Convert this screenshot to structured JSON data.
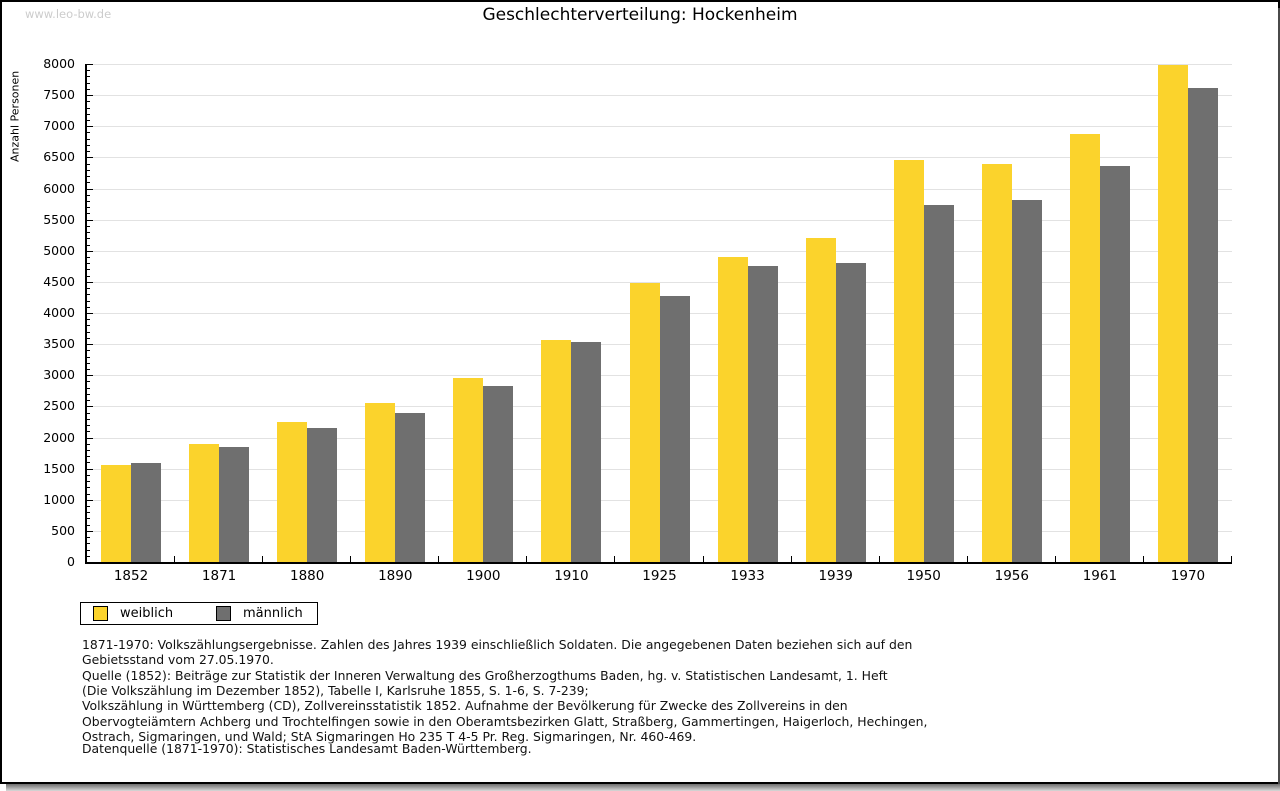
{
  "watermark": "www.leo-bw.de",
  "chart_data": {
    "type": "bar",
    "title": "Geschlechterverteilung: Hockenheim",
    "ylabel": "Anzahl Personen",
    "categories": [
      "1852",
      "1871",
      "1880",
      "1890",
      "1900",
      "1910",
      "1925",
      "1933",
      "1939",
      "1950",
      "1956",
      "1961",
      "1970"
    ],
    "series": [
      {
        "name": "weiblich",
        "color": "#fbd32c",
        "values": [
          1560,
          1900,
          2250,
          2560,
          2960,
          3560,
          4490,
          4900,
          5200,
          6460,
          6400,
          6880,
          7980
        ]
      },
      {
        "name": "männlich",
        "color": "#6f6f6f",
        "values": [
          1590,
          1850,
          2150,
          2400,
          2820,
          3540,
          4280,
          4760,
          4800,
          5740,
          5820,
          6360,
          7610
        ]
      }
    ],
    "ylim": [
      0,
      8000
    ],
    "ytick_step": 500,
    "minor_tick_step": 100,
    "grid": true,
    "gridline_color": "#e2e2e2",
    "legend_position": "bottom-left"
  },
  "notes": {
    "lines": [
      "1871-1970: Volkszählungsergebnisse. Zahlen des Jahres 1939 einschließlich Soldaten. Die angegebenen Daten beziehen sich auf den",
      "Gebietsstand vom 27.05.1970.",
      "Quelle (1852): Beiträge zur Statistik der Inneren Verwaltung des Großherzogthums Baden, hg. v. Statistischen Landesamt, 1. Heft",
      "(Die Volkszählung im Dezember 1852), Tabelle I, Karlsruhe 1855, S. 1-6, S. 7-239;",
      "Volkszählung in Württemberg (CD), Zollvereinsstatistik 1852. Aufnahme der Bevölkerung für Zwecke des Zollvereins in den",
      "Obervogteiämtern Achberg und Trochtelfingen sowie in den Oberamtsbezirken Glatt, Straßberg, Gammertingen, Haigerloch, Hechingen,",
      "Ostrach, Sigmaringen, und Wald; StA Sigmaringen Ho 235 T 4-5 Pr. Reg. Sigmaringen, Nr. 460-469."
    ],
    "datenquelle": "Datenquelle (1871-1970): Statistisches Landesamt Baden-Württemberg."
  }
}
